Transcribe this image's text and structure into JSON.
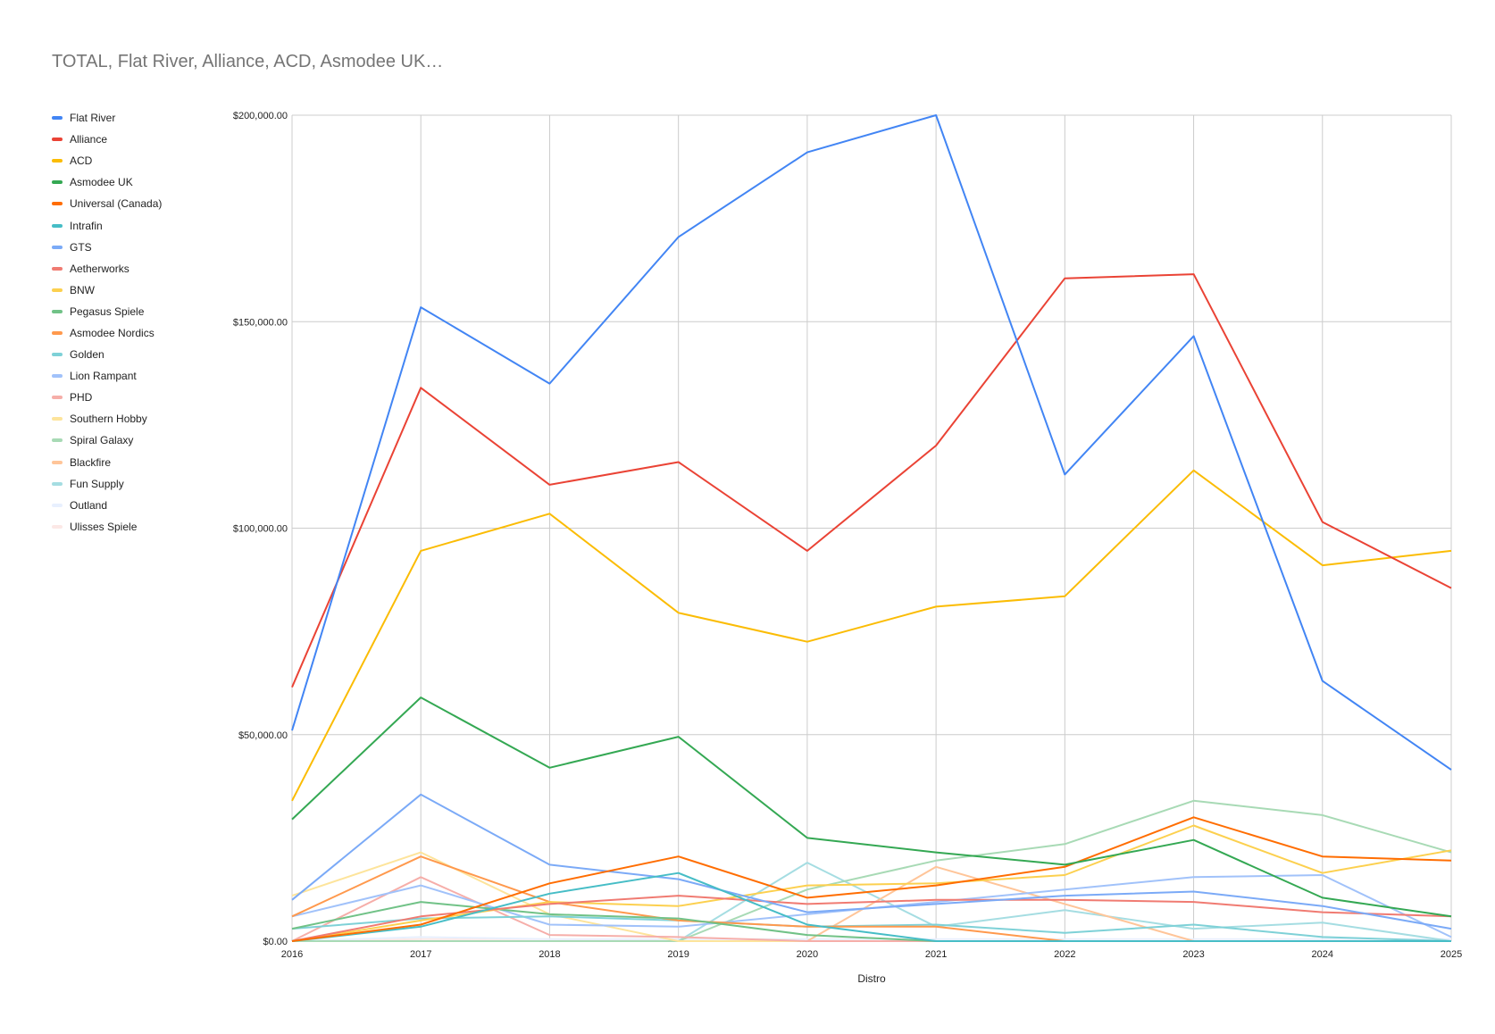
{
  "chart_data": {
    "type": "line",
    "title": "TOTAL, Flat River, Alliance, ACD, Asmodee UK…",
    "xlabel": "Distro",
    "ylabel": "",
    "x": [
      "2016",
      "2017",
      "2018",
      "2019",
      "2020",
      "2021",
      "2022",
      "2023",
      "2024",
      "2025"
    ],
    "ylim": [
      0,
      200000
    ],
    "y_ticks": [
      0,
      50000,
      100000,
      150000,
      200000
    ],
    "y_tick_labels": [
      "$0.00",
      "$50,000.00",
      "$100,000.00",
      "$150,000.00",
      "$200,000.00"
    ],
    "grid": true,
    "legend_position": "left",
    "series": [
      {
        "name": "Flat River",
        "color": "#4285f4",
        "values": [
          51000,
          153500,
          135000,
          170500,
          191000,
          200000,
          113000,
          146500,
          63000,
          41500
        ]
      },
      {
        "name": "Alliance",
        "color": "#ea4335",
        "values": [
          61500,
          134000,
          110500,
          116000,
          94500,
          120000,
          160500,
          161500,
          101500,
          85500
        ]
      },
      {
        "name": "ACD",
        "color": "#fbbc04",
        "values": [
          34000,
          94500,
          103500,
          79500,
          72500,
          81000,
          83500,
          114000,
          91000,
          94500
        ]
      },
      {
        "name": "Asmodee UK",
        "color": "#34a853",
        "values": [
          29500,
          59000,
          42000,
          49500,
          25000,
          21500,
          18500,
          24500,
          10500,
          6000
        ]
      },
      {
        "name": "Universal (Canada)",
        "color": "#ff6d01",
        "values": [
          0,
          4000,
          14000,
          20500,
          10500,
          13500,
          18000,
          30000,
          20500,
          19500
        ]
      },
      {
        "name": "Intrafin",
        "color": "#46bdc6",
        "values": [
          0,
          3500,
          11500,
          16500,
          4000,
          0,
          0,
          0,
          0,
          0
        ]
      },
      {
        "name": "GTS",
        "color": "#7baaf7",
        "values": [
          10000,
          35500,
          18500,
          15000,
          7000,
          9000,
          11000,
          12000,
          8500,
          3000
        ]
      },
      {
        "name": "Aetherworks",
        "color": "#f07b72",
        "values": [
          0,
          6000,
          9000,
          11000,
          9000,
          10000,
          10000,
          9500,
          7000,
          6000
        ]
      },
      {
        "name": "BNW",
        "color": "#fcd04f",
        "values": [
          0,
          5000,
          9500,
          8500,
          13500,
          14000,
          16000,
          28000,
          16500,
          22000
        ]
      },
      {
        "name": "Pegasus Spiele",
        "color": "#71c287",
        "values": [
          3000,
          9500,
          6500,
          5500,
          1500,
          0,
          0,
          0,
          0,
          0
        ]
      },
      {
        "name": "Asmodee Nordics",
        "color": "#ff994d",
        "values": [
          6000,
          20500,
          9500,
          5000,
          3500,
          3500,
          0,
          0,
          0,
          0
        ]
      },
      {
        "name": "Golden",
        "color": "#7ed1d7",
        "values": [
          3000,
          5500,
          6000,
          5000,
          3500,
          4000,
          2000,
          4000,
          1000,
          0
        ]
      },
      {
        "name": "Lion Rampant",
        "color": "#a1c2fa",
        "values": [
          6000,
          13500,
          4000,
          3500,
          6500,
          9500,
          12500,
          15500,
          16000,
          1000
        ]
      },
      {
        "name": "PHD",
        "color": "#f6aea9",
        "values": [
          0,
          15500,
          1500,
          1000,
          0,
          0,
          0,
          0,
          0,
          0
        ]
      },
      {
        "name": "Southern Hobby",
        "color": "#fde49b",
        "values": [
          11000,
          21500,
          6500,
          0,
          0,
          0,
          0,
          0,
          0,
          0
        ]
      },
      {
        "name": "Spiral Galaxy",
        "color": "#a8dab5",
        "values": [
          0,
          0,
          0,
          0,
          12500,
          19500,
          23500,
          34000,
          30500,
          21500
        ]
      },
      {
        "name": "Blackfire",
        "color": "#ffc599",
        "values": [
          0,
          0,
          0,
          0,
          0,
          18000,
          9000,
          0,
          0,
          0
        ]
      },
      {
        "name": "Fun Supply",
        "color": "#a5dde2",
        "values": [
          0,
          0,
          0,
          0,
          19000,
          3500,
          7500,
          3000,
          4500,
          0
        ]
      },
      {
        "name": "Outland",
        "color": "#e8f0fe",
        "values": [
          0,
          1000,
          500,
          500,
          500,
          500,
          500,
          500,
          500,
          500
        ]
      },
      {
        "name": "Ulisses Spiele",
        "color": "#fce8e6",
        "values": [
          0,
          500,
          500,
          0,
          0,
          0,
          0,
          0,
          0,
          0
        ]
      }
    ]
  }
}
